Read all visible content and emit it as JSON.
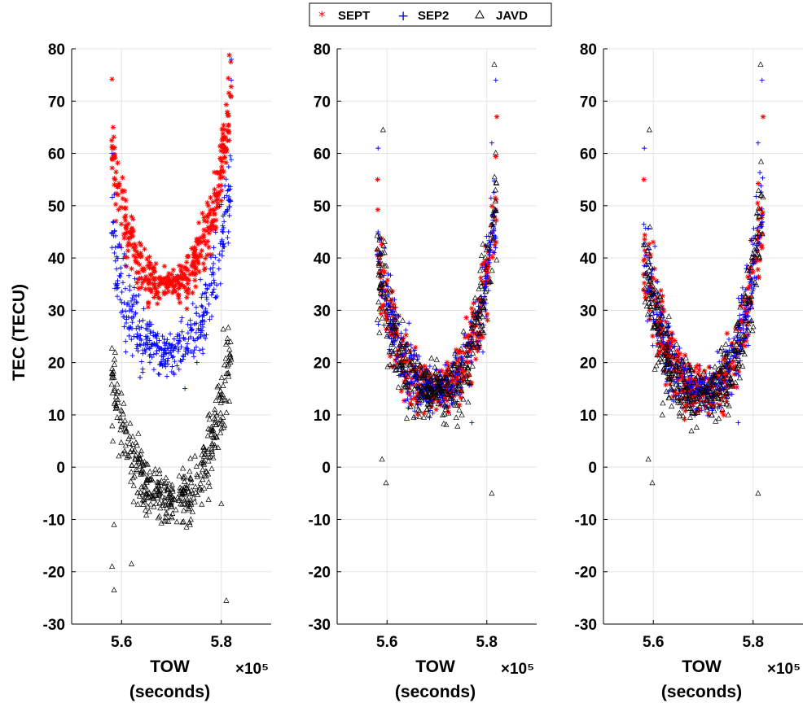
{
  "chart_data": [
    {
      "type": "scatter",
      "ylabel": "TEC (TECU)",
      "xlabel_line1": "TOW",
      "xlabel_line2": "(seconds)",
      "x_exponent_label": "×10⁵",
      "xlim": [
        5.5,
        5.9
      ],
      "ylim": [
        -30,
        80
      ],
      "xticks": [
        5.6,
        5.8
      ],
      "yticks": [
        -30,
        -20,
        -10,
        0,
        10,
        20,
        30,
        40,
        50,
        60,
        70,
        80
      ],
      "grid": true,
      "series": [
        {
          "name": "SEPT",
          "color": "#ff0000",
          "marker": "asterisk",
          "profile": {
            "x_start": 5.58,
            "x_end": 5.82,
            "x_center": 5.69,
            "min": 35,
            "left_edge": 60,
            "right_edge": 70,
            "spread": 2.5,
            "count": 420
          },
          "outliers": [
            [
              5.581,
              74.2
            ],
            [
              5.816,
              78.8
            ],
            [
              5.819,
              77.5
            ],
            [
              5.583,
              65.0
            ]
          ]
        },
        {
          "name": "SEP2",
          "color": "#0000ff",
          "marker": "plus",
          "profile": {
            "x_start": 5.58,
            "x_end": 5.82,
            "x_center": 5.69,
            "min": 22,
            "left_edge": 45,
            "right_edge": 55,
            "spread": 3.0,
            "count": 420
          },
          "outliers": [
            [
              5.581,
              60.0
            ],
            [
              5.82,
              74.0
            ],
            [
              5.82,
              78.0
            ]
          ]
        },
        {
          "name": "JAVD",
          "color": "#000000",
          "marker": "triangle",
          "profile": {
            "x_start": 5.58,
            "x_end": 5.82,
            "x_center": 5.7,
            "min": -6,
            "left_edge": 18,
            "right_edge": 25,
            "spread": 3.0,
            "count": 420
          },
          "outliers": [
            [
              5.585,
              -23.5
            ],
            [
              5.581,
              -19.0
            ],
            [
              5.62,
              -18.5
            ],
            [
              5.81,
              -25.5
            ],
            [
              5.585,
              -11.0
            ],
            [
              5.8,
              -7.0
            ]
          ]
        }
      ]
    },
    {
      "type": "scatter",
      "xlabel_line1": "TOW",
      "xlabel_line2": "(seconds)",
      "x_exponent_label": "×10⁵",
      "xlim": [
        5.5,
        5.9
      ],
      "ylim": [
        -30,
        80
      ],
      "xticks": [
        5.6,
        5.8
      ],
      "yticks": [
        -30,
        -20,
        -10,
        0,
        10,
        20,
        30,
        40,
        50,
        60,
        70,
        80
      ],
      "grid": true,
      "series": [
        {
          "name": "SEPT",
          "color": "#ff0000",
          "marker": "asterisk",
          "profile": {
            "x_start": 5.58,
            "x_end": 5.82,
            "x_center": 5.7,
            "min": 15,
            "left_edge": 42,
            "right_edge": 50,
            "spread": 3.0,
            "count": 380
          },
          "outliers": [
            [
              5.82,
              67.0
            ],
            [
              5.581,
              55.0
            ]
          ]
        },
        {
          "name": "SEP2",
          "color": "#0000ff",
          "marker": "plus",
          "profile": {
            "x_start": 5.58,
            "x_end": 5.82,
            "x_center": 5.7,
            "min": 15,
            "left_edge": 42,
            "right_edge": 52,
            "spread": 3.0,
            "count": 380
          },
          "outliers": [
            [
              5.582,
              61.0
            ],
            [
              5.818,
              74.0
            ],
            [
              5.77,
              8.5
            ],
            [
              5.81,
              62.0
            ]
          ]
        },
        {
          "name": "JAVD",
          "color": "#000000",
          "marker": "triangle",
          "profile": {
            "x_start": 5.58,
            "x_end": 5.82,
            "x_center": 5.7,
            "min": 14,
            "left_edge": 40,
            "right_edge": 52,
            "spread": 3.5,
            "count": 380
          },
          "outliers": [
            [
              5.592,
              64.5
            ],
            [
              5.815,
              77.0
            ],
            [
              5.598,
              -3.0
            ],
            [
              5.81,
              -5.0
            ],
            [
              5.59,
              1.5
            ],
            [
              5.75,
              10.0
            ]
          ]
        }
      ]
    },
    {
      "type": "scatter",
      "xlabel_line1": "TOW",
      "xlabel_line2": "(seconds)",
      "x_exponent_label": "×10⁵",
      "xlim": [
        5.5,
        5.9
      ],
      "ylim": [
        -30,
        80
      ],
      "xticks": [
        5.6,
        5.8
      ],
      "yticks": [
        -30,
        -20,
        -10,
        0,
        10,
        20,
        30,
        40,
        50,
        60,
        70,
        80
      ],
      "grid": true,
      "series": [
        {
          "name": "SEPT",
          "color": "#ff0000",
          "marker": "asterisk",
          "profile": {
            "x_start": 5.58,
            "x_end": 5.82,
            "x_center": 5.7,
            "min": 15,
            "left_edge": 42,
            "right_edge": 50,
            "spread": 3.0,
            "count": 380
          },
          "outliers": [
            [
              5.82,
              67.0
            ],
            [
              5.581,
              55.0
            ]
          ]
        },
        {
          "name": "SEP2",
          "color": "#0000ff",
          "marker": "plus",
          "profile": {
            "x_start": 5.58,
            "x_end": 5.82,
            "x_center": 5.7,
            "min": 15,
            "left_edge": 42,
            "right_edge": 52,
            "spread": 3.0,
            "count": 380
          },
          "outliers": [
            [
              5.582,
              61.0
            ],
            [
              5.818,
              74.0
            ],
            [
              5.77,
              8.5
            ],
            [
              5.81,
              62.0
            ]
          ]
        },
        {
          "name": "JAVD",
          "color": "#000000",
          "marker": "triangle",
          "profile": {
            "x_start": 5.58,
            "x_end": 5.82,
            "x_center": 5.7,
            "min": 14,
            "left_edge": 40,
            "right_edge": 52,
            "spread": 3.5,
            "count": 380
          },
          "outliers": [
            [
              5.592,
              64.5
            ],
            [
              5.815,
              77.0
            ],
            [
              5.598,
              -3.0
            ],
            [
              5.81,
              -5.0
            ],
            [
              5.59,
              1.5
            ],
            [
              5.75,
              10.0
            ]
          ]
        }
      ]
    }
  ],
  "legend": {
    "placement": "top-center",
    "items": [
      {
        "label": "SEPT",
        "color": "#ff0000",
        "marker": "asterisk"
      },
      {
        "label": "SEP2",
        "color": "#0000ff",
        "marker": "plus"
      },
      {
        "label": "JAVD",
        "color": "#000000",
        "marker": "triangle"
      }
    ]
  }
}
